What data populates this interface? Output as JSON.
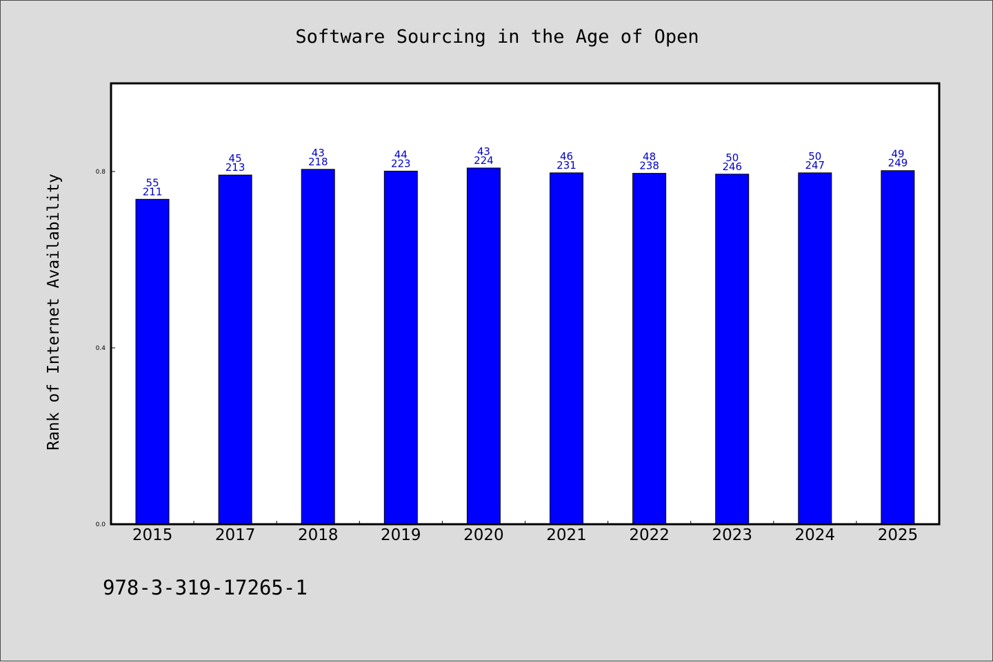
{
  "chart_data": {
    "type": "bar",
    "title": "Software Sourcing in the Age of Open",
    "xlabel": "",
    "ylabel": "Rank of Internet Availability",
    "ylim": [
      0,
      1.0
    ],
    "yticks": [
      "0.0",
      "0.4",
      "0.8"
    ],
    "ytick_values": [
      0.0,
      0.4,
      0.8
    ],
    "categories": [
      "2015",
      "2017",
      "2018",
      "2019",
      "2020",
      "2021",
      "2022",
      "2023",
      "2024",
      "2025"
    ],
    "values": [
      0.737,
      0.792,
      0.805,
      0.801,
      0.808,
      0.797,
      0.796,
      0.794,
      0.797,
      0.802
    ],
    "label_top": [
      "55",
      "45",
      "43",
      "44",
      "43",
      "46",
      "48",
      "50",
      "50",
      "49"
    ],
    "label_bottom": [
      "211",
      "213",
      "218",
      "223",
      "224",
      "231",
      "238",
      "246",
      "247",
      "249"
    ],
    "bar_color": "#0000ff",
    "label_color": "#0000cc",
    "grid": false,
    "legend": "none"
  },
  "footer": {
    "isbn": "978-3-319-17265-1"
  }
}
